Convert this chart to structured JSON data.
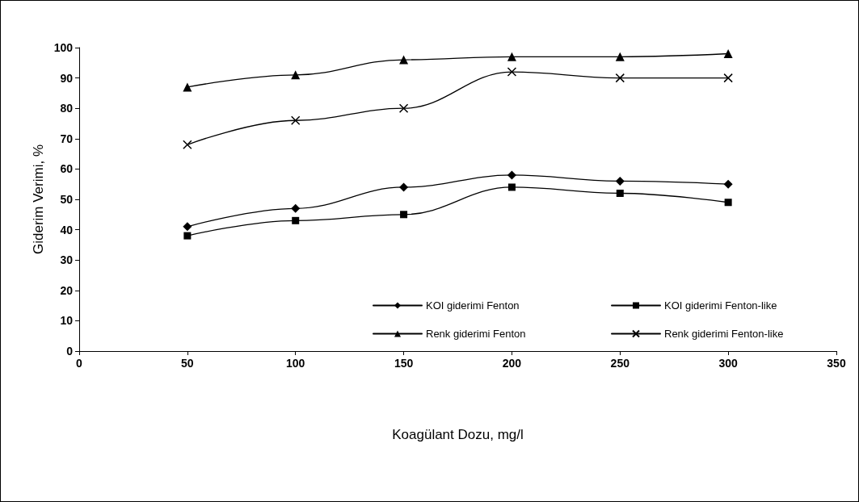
{
  "chart_data": {
    "type": "line",
    "xlabel": "Koagülant Dozu, mg/l",
    "ylabel": "Giderim Verimi, %",
    "x": [
      50,
      100,
      150,
      200,
      250,
      300
    ],
    "series": [
      {
        "name": "KOI giderimi Fenton",
        "color": "#000000",
        "marker": "diamond",
        "values": [
          41,
          47,
          54,
          58,
          56,
          55
        ]
      },
      {
        "name": "KOI giderimi Fenton-like",
        "color": "#000000",
        "marker": "square",
        "values": [
          38,
          43,
          45,
          54,
          52,
          49
        ]
      },
      {
        "name": "Renk giderimi Fenton",
        "color": "#000000",
        "marker": "triangle",
        "values": [
          87,
          91,
          96,
          97,
          97,
          98
        ]
      },
      {
        "name": "Renk giderimi Fenton-like",
        "color": "#000000",
        "marker": "cross",
        "values": [
          68,
          76,
          80,
          92,
          90,
          90
        ]
      }
    ],
    "xlim": [
      0,
      350
    ],
    "xticks": [
      0,
      50,
      100,
      150,
      200,
      250,
      300,
      350
    ],
    "ylim": [
      0,
      100
    ],
    "yticks": [
      0,
      10,
      20,
      30,
      40,
      50,
      60,
      70,
      80,
      90,
      100
    ],
    "grid": false,
    "legend": "bottom right",
    "line_style": "solid"
  }
}
